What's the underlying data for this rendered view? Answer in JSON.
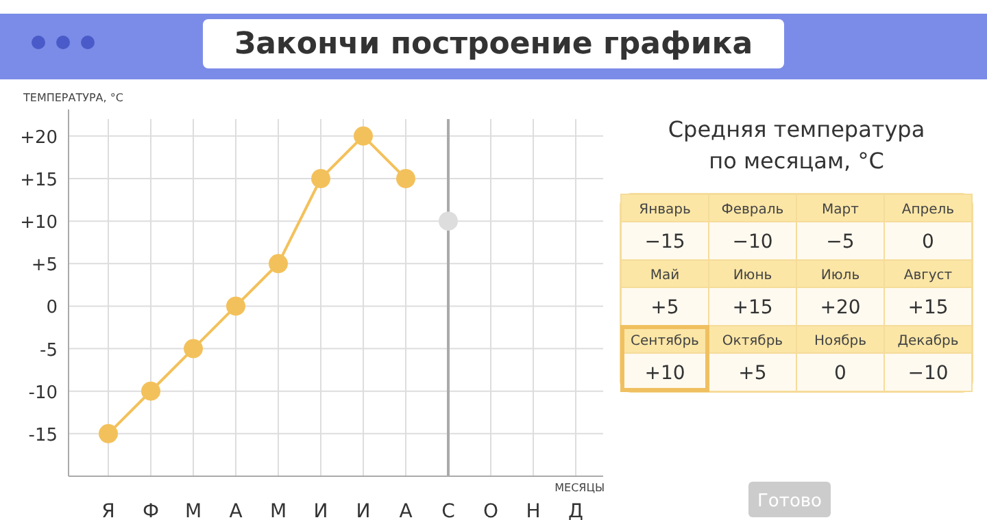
{
  "chart_data": [
    {
      "type": "line",
      "title": "Закончи построение графика",
      "ylabel": "ТЕМПЕРАТУРА, °C",
      "xlabel": "МЕСЯЦЫ",
      "categories": [
        "Я",
        "Ф",
        "М",
        "А",
        "М",
        "И",
        "И",
        "А",
        "С",
        "О",
        "Н",
        "Д"
      ],
      "series": [
        {
          "type": "line",
          "color": "#f3c15b",
          "values": [
            -15,
            -10,
            -5,
            0,
            5,
            15,
            20,
            15,
            null,
            null,
            null,
            null
          ]
        },
        {
          "type": "scatter",
          "color": "#dddddd",
          "x": [
            "С"
          ],
          "values": [
            10
          ]
        }
      ],
      "ylim": [
        -20,
        22
      ],
      "yticks": [
        {
          "value": -15,
          "label": "-15"
        },
        {
          "value": -10,
          "label": "-10"
        },
        {
          "value": -5,
          "label": "-5"
        },
        0,
        {
          "value": 5,
          "label": "+5"
        },
        {
          "value": 10,
          "label": "+10"
        },
        {
          "value": 15,
          "label": "+15"
        },
        {
          "value": 20,
          "label": "+20"
        }
      ],
      "grid": true,
      "marker": "circle",
      "line_style": "solid",
      "ref_lines": [
        {
          "axis": "x",
          "value": "С",
          "color": "#aaaaaa"
        }
      ]
    },
    {
      "type": "other",
      "title": "Средняя температура по месяцам, °C",
      "categories": [
        "Январь",
        "Февраль",
        "Март",
        "Апрель",
        "Май",
        "Июнь",
        "Июль",
        "Август",
        "Сентябрь",
        "Октябрь",
        "Ноябрь",
        "Декабрь"
      ],
      "values": [
        -15,
        -10,
        -5,
        0,
        5,
        15,
        20,
        15,
        10,
        5,
        0,
        -10
      ],
      "value_labels": [
        "−15",
        "−10",
        "−5",
        "0",
        "+5",
        "+15",
        "+20",
        "+15",
        "+10",
        "+5",
        "0",
        "−10"
      ],
      "annotations": [
        "Готово"
      ]
    }
  ]
}
